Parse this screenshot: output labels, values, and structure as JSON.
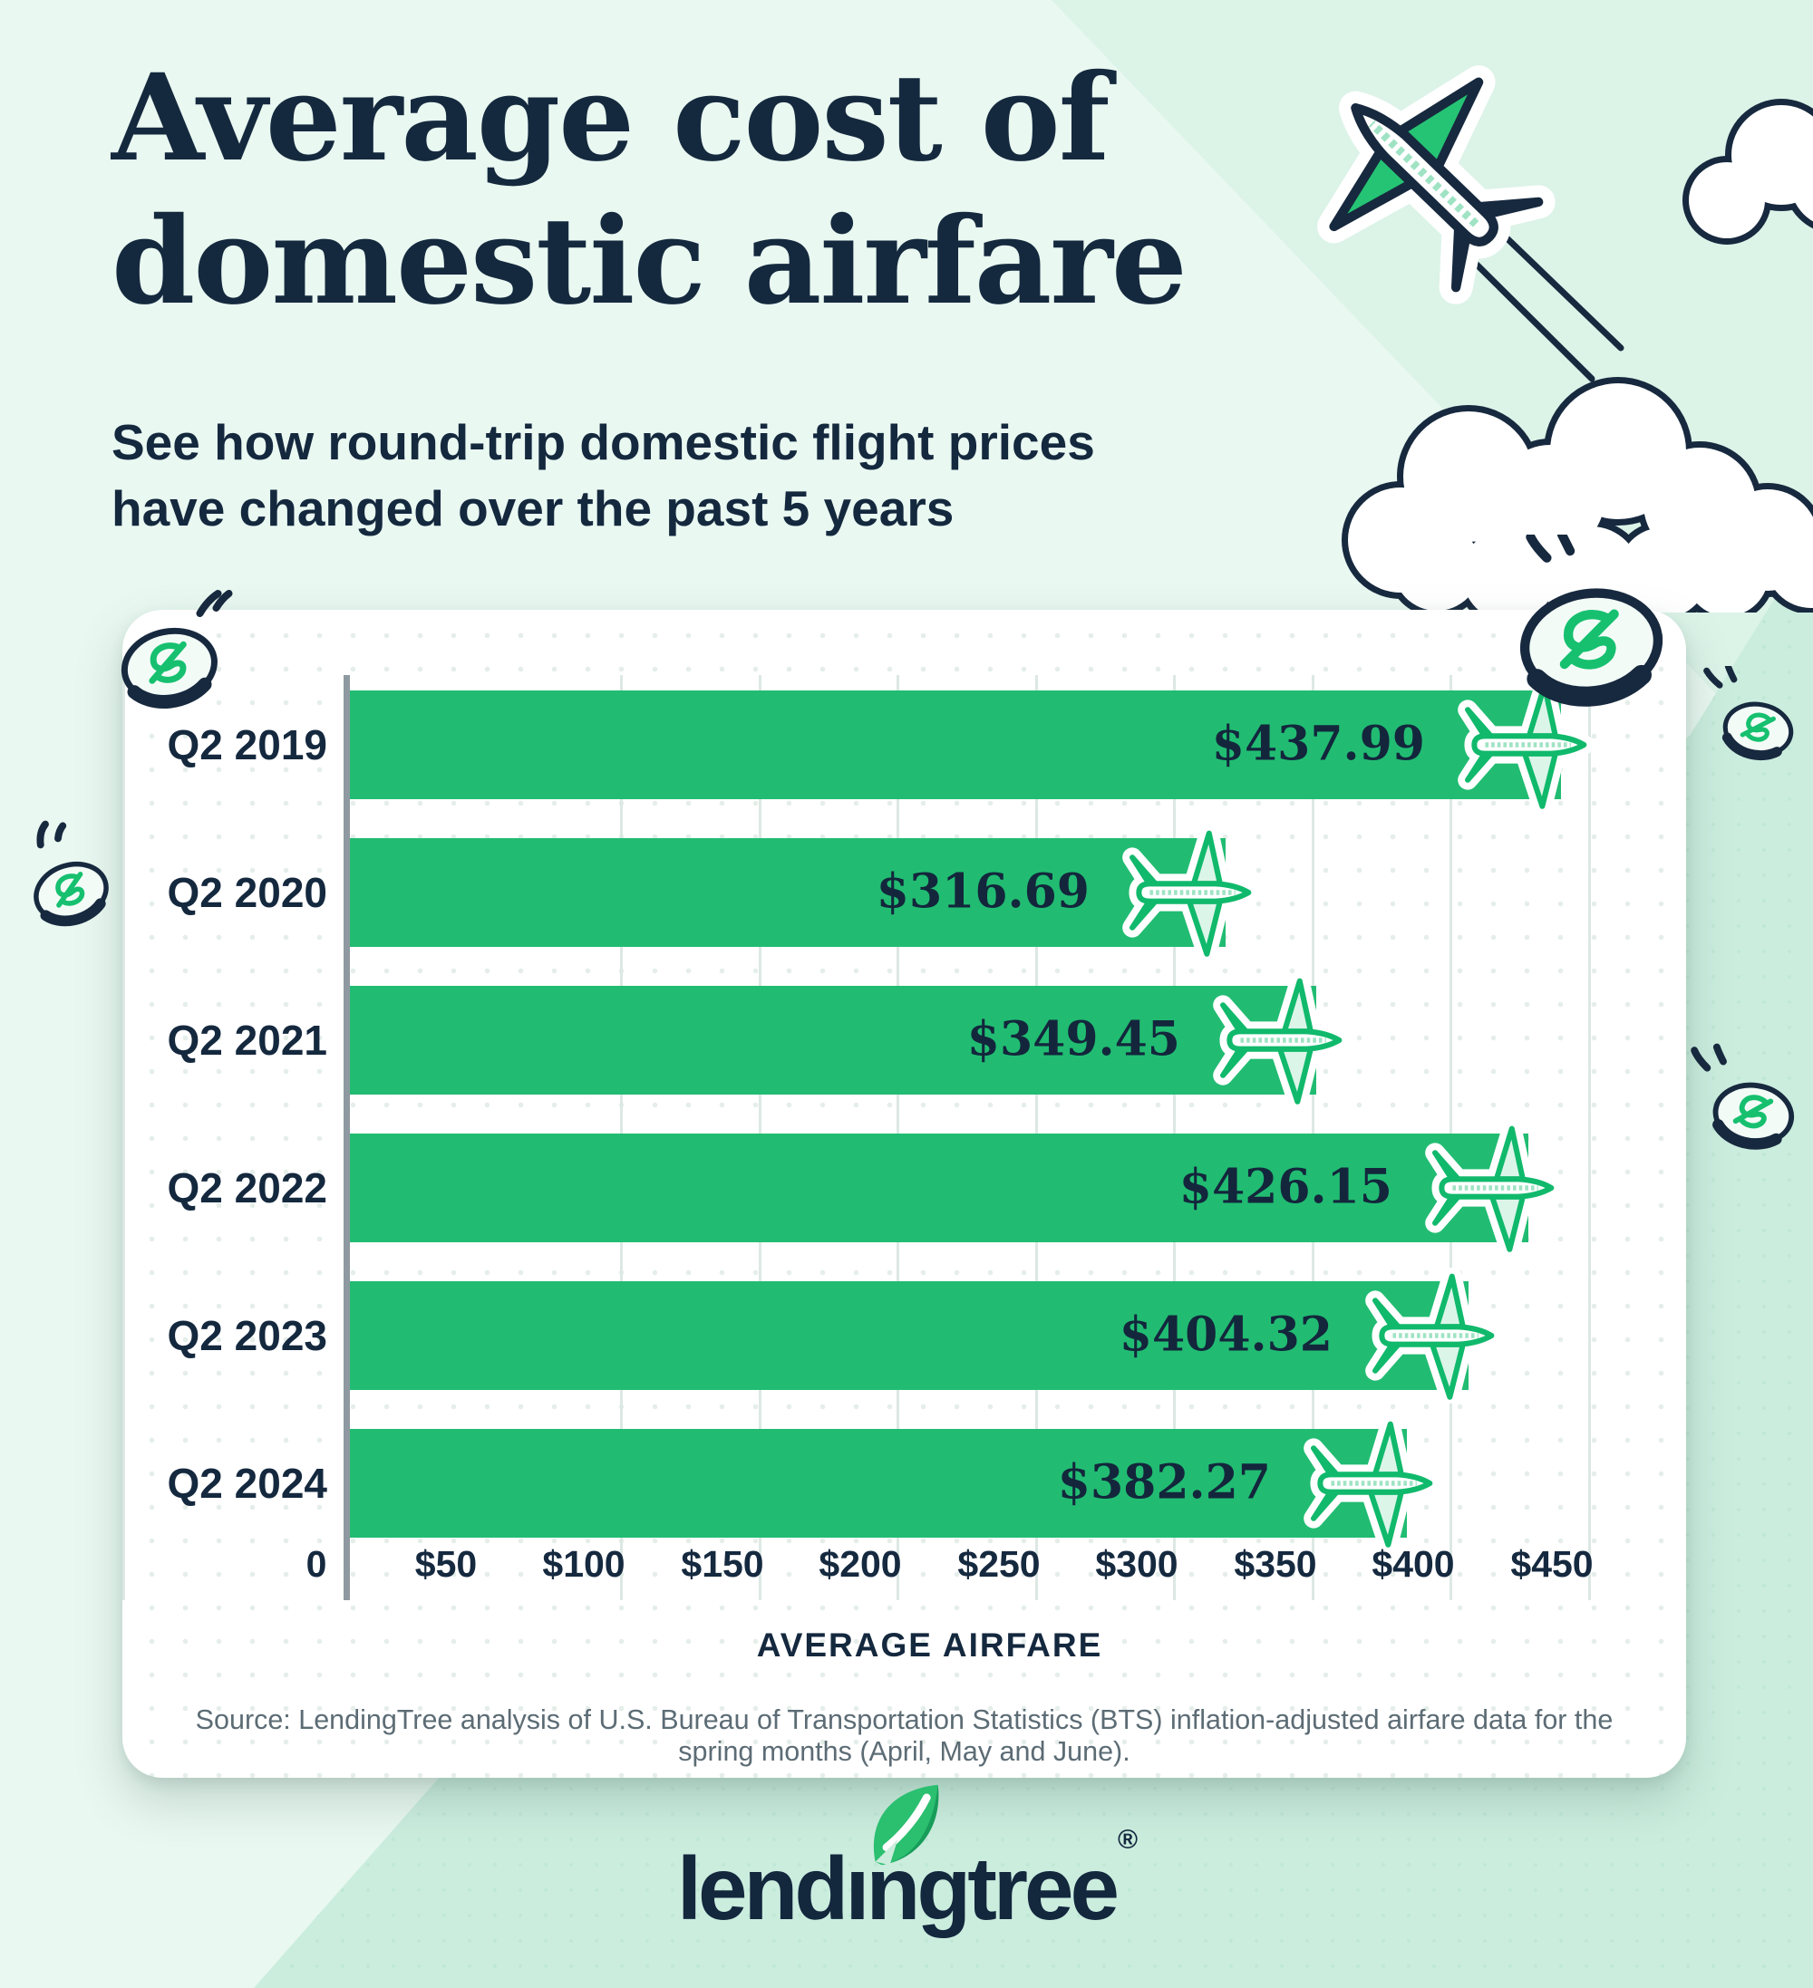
{
  "header": {
    "title_line1": "Average cost of",
    "title_line2": "domestic airfare",
    "subtitle_line1": "See how round-trip domestic flight prices",
    "subtitle_line2": "have changed over the past 5 years"
  },
  "chart_data": {
    "type": "bar",
    "orientation": "horizontal",
    "title": "Average cost of domestic airfare",
    "categories": [
      "Q2 2019",
      "Q2 2020",
      "Q2 2021",
      "Q2 2022",
      "Q2 2023",
      "Q2 2024"
    ],
    "values": [
      437.99,
      316.69,
      349.45,
      426.15,
      404.32,
      382.27
    ],
    "value_labels": [
      "$437.99",
      "$316.69",
      "$349.45",
      "$426.15",
      "$404.32",
      "$382.27"
    ],
    "xlabel": "AVERAGE AIRFARE",
    "ylabel": "",
    "xlim": [
      0,
      450
    ],
    "tick_labels": [
      "0",
      "$50",
      "$100",
      "$150",
      "$200",
      "$250",
      "$300",
      "$350",
      "$400",
      "$450"
    ],
    "grid": true,
    "legend": "none",
    "bar_color": "#21BC72"
  },
  "source": "Source: LendingTree analysis of U.S. Bureau of Transportation Statistics (BTS) inflation-adjusted airfare data for the spring months (April, May and June).",
  "footer": {
    "logo_part1": "lend",
    "logo_dotless_i": "ı",
    "logo_part2": "ngtree",
    "logo_full_text": "lendingtree",
    "registered_mark": "®"
  },
  "icons": {
    "plane-icon": "airplane pointing right at end of each bar",
    "jet-icon": "jet flying up-left with contrail",
    "cloud-icon": "outlined clouds",
    "coin-icon": "tossed dollar coins",
    "leaf-icon": "lendingtree leaf over the i"
  },
  "colors": {
    "background": "#E9F8F1",
    "background_dark_band": "#CBEDDE",
    "card": "#FFFFFF",
    "bar_green": "#21BC72",
    "accent_green": "#16C06F",
    "navy": "#15293E",
    "axis_gray": "#8E99A1",
    "source_gray": "#5C6C75"
  }
}
